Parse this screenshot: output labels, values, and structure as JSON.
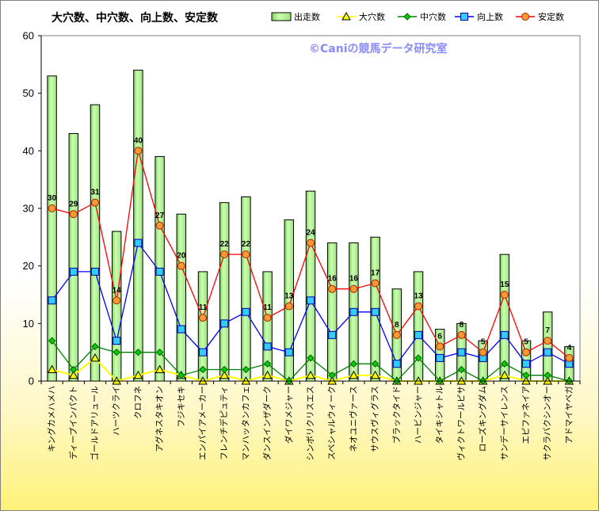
{
  "chart_data": {
    "type": "bar+line",
    "title": "大穴数、中穴数、向上数、安定数",
    "watermark": "©Caniの競馬データ研究室",
    "ylim": [
      0,
      60
    ],
    "yticks": [
      0,
      10,
      20,
      30,
      40,
      50,
      60
    ],
    "grid": false,
    "legend_position": "top-right",
    "categories": [
      "キングカメハメハ",
      "ディープインパクト",
      "ゴールドアリュール",
      "ハーツクライ",
      "クロフネ",
      "アグネスタキオン",
      "フジキセキ",
      "エンパイアメーカー",
      "フレンチデピュティ",
      "マンハッタンカフェ",
      "ダンスインザダーク",
      "ダイワメジャー",
      "シンボリクリスエス",
      "スペシャルウィーク",
      "ネオユニヴァース",
      "サウスヴィグラス",
      "ブラックタイド",
      "ハービンジャー",
      "タイキシャトル",
      "ヴィクトワールピサ",
      "ローズキングダム",
      "サンデーサイレンス",
      "エピファネイア",
      "サクラバクシンオー",
      "アドマイヤベガ"
    ],
    "series": [
      {
        "name": "出走数",
        "kind": "bar",
        "color": "#ccffb3",
        "values": [
          53,
          43,
          48,
          26,
          54,
          39,
          29,
          19,
          31,
          32,
          19,
          28,
          33,
          24,
          24,
          25,
          16,
          19,
          9,
          10,
          7,
          22,
          7,
          12,
          6
        ]
      },
      {
        "name": "大穴数",
        "kind": "line",
        "color": "#ffff00",
        "values": [
          2,
          1,
          4,
          0,
          1,
          2,
          1,
          0,
          1,
          0,
          1,
          0,
          1,
          0,
          1,
          1,
          0,
          0,
          0,
          0,
          0,
          1,
          0,
          0,
          0
        ]
      },
      {
        "name": "中穴数",
        "kind": "line",
        "color": "#008000",
        "values": [
          7,
          2,
          6,
          5,
          5,
          5,
          1,
          2,
          2,
          2,
          3,
          0,
          4,
          1,
          3,
          3,
          0,
          4,
          0,
          2,
          0,
          3,
          1,
          1,
          0
        ]
      },
      {
        "name": "向上数",
        "kind": "line",
        "color": "#00ffff",
        "values": [
          14,
          19,
          19,
          7,
          24,
          19,
          9,
          5,
          10,
          12,
          6,
          5,
          14,
          8,
          12,
          12,
          3,
          8,
          4,
          5,
          4,
          8,
          3,
          5,
          3
        ]
      },
      {
        "name": "安定数",
        "kind": "line",
        "color": "#ff9900",
        "values": [
          30,
          29,
          31,
          14,
          40,
          27,
          20,
          11,
          22,
          22,
          11,
          13,
          24,
          16,
          16,
          17,
          8,
          13,
          6,
          8,
          5,
          15,
          5,
          7,
          4
        ]
      }
    ],
    "data_labels": [
      "30",
      "29",
      "31",
      "14",
      "40",
      "27",
      "20",
      "11",
      "22",
      "22",
      "11",
      "13",
      "24",
      "16",
      "16",
      "17",
      "8",
      "13",
      "6",
      "8",
      "5",
      "15",
      "5",
      "7",
      "4"
    ]
  }
}
